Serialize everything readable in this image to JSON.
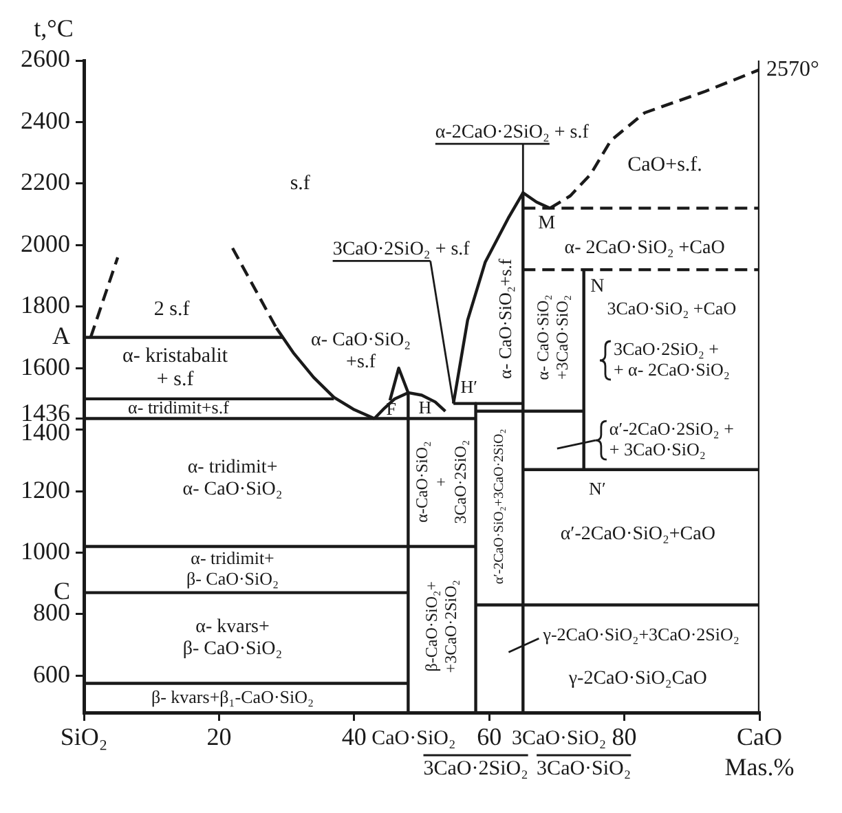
{
  "chart_data": {
    "type": "line",
    "xlabel": "Mas.%",
    "ylabel": "t,°C",
    "xlim": [
      0,
      100
    ],
    "ylim": [
      480,
      2600
    ],
    "xticks": [
      {
        "value": 0,
        "label": "SiO₂"
      },
      20,
      40,
      60,
      80,
      {
        "value": 100,
        "label": "CaO"
      }
    ],
    "yticks": [
      600,
      800,
      1000,
      1200,
      1400,
      1436,
      1600,
      1800,
      2000,
      2200,
      2400,
      2600
    ],
    "marker": "none",
    "series": [
      {
        "color": "#1a1a1a",
        "line_style": "dashed",
        "x": [
          1,
          5
        ],
        "values": [
          1700,
          1960
        ]
      },
      {
        "color": "#1a1a1a",
        "line_style": "dashed",
        "x": [
          22,
          28.5
        ],
        "values": [
          1990,
          1730
        ]
      },
      {
        "color": "#1a1a1a",
        "x": [
          28.5,
          31,
          34,
          37,
          40,
          43
        ],
        "values": [
          1730,
          1650,
          1570,
          1505,
          1465,
          1436
        ]
      },
      {
        "color": "#1a1a1a",
        "x": [
          0,
          29.4
        ],
        "values": [
          1700,
          1700
        ]
      },
      {
        "color": "#1a1a1a",
        "x": [
          0,
          37
        ],
        "values": [
          1500,
          1500
        ]
      },
      {
        "color": "#1a1a1a",
        "x": [
          0,
          58
        ],
        "values": [
          1436,
          1436
        ]
      },
      {
        "color": "#1a1a1a",
        "x": [
          43,
          44.5,
          46,
          48,
          50,
          52,
          53.5
        ],
        "values": [
          1436,
          1470,
          1500,
          1520,
          1512,
          1490,
          1460
        ]
      },
      {
        "color": "#1a1a1a",
        "x": [
          45.3,
          46.6,
          48,
          48
        ],
        "values": [
          1495,
          1600,
          1520,
          480
        ]
      },
      {
        "color": "#1a1a1a",
        "x": [
          54.7,
          56.8,
          59.4,
          62.8,
          65,
          67,
          69
        ],
        "values": [
          1485,
          1756,
          1944,
          2087,
          2170,
          2140,
          2120
        ]
      },
      {
        "color": "#1a1a1a",
        "line_style": "dashed",
        "x": [
          69,
          72,
          75,
          78,
          83,
          92,
          100
        ],
        "values": [
          2120,
          2160,
          2230,
          2340,
          2430,
          2500,
          2570
        ]
      },
      {
        "color": "#1a1a1a",
        "x": [
          65,
          65
        ],
        "values": [
          2170,
          480
        ]
      },
      {
        "color": "#1a1a1a",
        "line_style": "dashed",
        "x": [
          65,
          100
        ],
        "values": [
          2120,
          2120
        ]
      },
      {
        "color": "#1a1a1a",
        "line_style": "dashed",
        "x": [
          65,
          100
        ],
        "values": [
          1920,
          1920
        ]
      },
      {
        "color": "#1a1a1a",
        "x": [
          74,
          74
        ],
        "values": [
          1920,
          1270
        ]
      },
      {
        "color": "#1a1a1a",
        "x": [
          65,
          100
        ],
        "values": [
          1270,
          1270
        ]
      },
      {
        "color": "#1a1a1a",
        "x": [
          54.7,
          65
        ],
        "values": [
          1485,
          1485
        ]
      },
      {
        "color": "#1a1a1a",
        "x": [
          58,
          74
        ],
        "values": [
          1460,
          1460
        ]
      },
      {
        "color": "#1a1a1a",
        "x": [
          58,
          58
        ],
        "values": [
          1485,
          480
        ]
      },
      {
        "color": "#1a1a1a",
        "x": [
          0,
          58
        ],
        "values": [
          1020,
          1020
        ]
      },
      {
        "color": "#1a1a1a",
        "x": [
          0,
          48
        ],
        "values": [
          870,
          870
        ]
      },
      {
        "color": "#1a1a1a",
        "x": [
          0,
          48
        ],
        "values": [
          575,
          575
        ]
      },
      {
        "color": "#1a1a1a",
        "x": [
          58,
          100
        ],
        "values": [
          830,
          830
        ]
      },
      {
        "color": "#1a1a1a",
        "x": [
          100,
          100
        ],
        "values": [
          480,
          2600
        ]
      }
    ],
    "annotations": [
      "s.f",
      "2 s.f",
      "α- kristabalit\n+ s.f",
      "α- tridimit+s.f",
      "α- CaO·SiO₂\n+s.f",
      {
        "text": "F",
        "x": 45.5,
        "y": 1463
      },
      "H",
      "H′",
      {
        "text": "3CaO·2SiO₂ + s.f",
        "x": 54.7,
        "y": 1485
      },
      {
        "text": "α-2CaO·2SiO₂ + s.f",
        "x": 65,
        "y": 2170
      },
      "CaO+s.f.",
      "M",
      "α- 2CaO·SiO₂ +CaO",
      "N",
      "3CaO·SiO₂ +CaO",
      "3CaO·2SiO₂ +\n+ α- 2CaO·SiO₂",
      "α- CaO·SiO₂+s.f",
      "α- CaO·SiO₂\n+3CaO·SiO₂",
      "α′-2CaO·2SiO₂ +\n+ 3CaO·SiO₂",
      "α- tridimit+\nα- CaO·SiO₂",
      "α-CaO·SiO₂\n+\n3CaO·2SiO₂",
      "α′-2CaO·SiO₂+3CaO·2SiO₂",
      "N′",
      "α′-2CaO·SiO₂+CaO",
      "α- tridimit+\nβ- CaO·SiO₂",
      "α- kvars+\nβ- CaO·SiO₂",
      "β-CaO·SiO₂+\n+3CaO·2SiO₂",
      "γ-2CaO·SiO₂+3CaO·2SiO₂",
      "γ-2CaO·SiO₂CaO",
      "β- kvars+β₁-CaO·SiO₂",
      {
        "text": "A",
        "x": 0,
        "y": 1700
      },
      {
        "text": "C",
        "x": 0,
        "y": 870
      },
      {
        "text": "2570°",
        "x": 100,
        "y": 2570
      },
      "CaO·SiO₂",
      "3CaO·SiO₂",
      "3CaO·2SiO₂",
      "3CaO·SiO₂"
    ]
  }
}
